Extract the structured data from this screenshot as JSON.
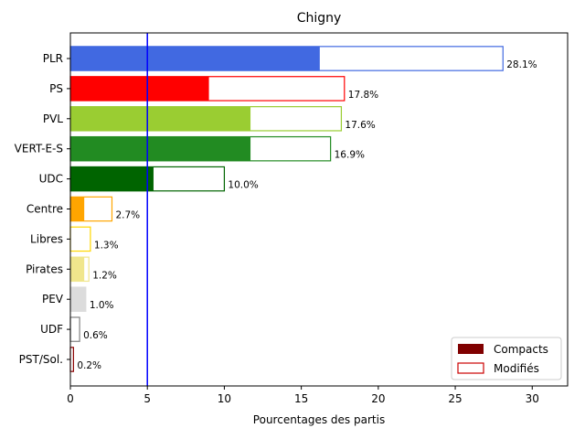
{
  "chart_data": {
    "type": "bar",
    "orientation": "horizontal",
    "title": "Chigny",
    "xlabel": "Pourcentages des partis",
    "ylabel": "",
    "xlim": [
      0,
      32.3
    ],
    "x_ticks": [
      0,
      5,
      10,
      15,
      20,
      25,
      30
    ],
    "threshold_line": {
      "x": 5,
      "color": "#0000ff"
    },
    "legend": {
      "position": "lower-right",
      "entries": [
        {
          "label": "Compacts",
          "style": "filled",
          "color": "#800000"
        },
        {
          "label": "Modifiés",
          "style": "outline",
          "color": "#cc0000"
        }
      ]
    },
    "categories": [
      "PLR",
      "PS",
      "PVL",
      "VERT-E-S",
      "UDC",
      "Centre",
      "Libres",
      "Pirates",
      "PEV",
      "UDF",
      "PST/Sol."
    ],
    "series": [
      {
        "name": "Compacts",
        "values": [
          16.2,
          9.0,
          11.7,
          11.7,
          5.4,
          0.9,
          0.0,
          0.9,
          1.0,
          0.0,
          0.0
        ]
      },
      {
        "name": "Modifiés",
        "values": [
          28.1,
          17.8,
          17.6,
          16.9,
          10.0,
          2.7,
          1.3,
          1.2,
          1.0,
          0.6,
          0.2
        ]
      }
    ],
    "data_labels": [
      "28.1%",
      "17.8%",
      "17.6%",
      "16.9%",
      "10.0%",
      "2.7%",
      "1.3%",
      "1.2%",
      "1.0%",
      "0.6%",
      "0.2%"
    ],
    "colors": [
      "#4169e1",
      "#ff0000",
      "#9acd32",
      "#228b22",
      "#006400",
      "#ffa500",
      "#ffd700",
      "#f0e68c",
      "#dcdcdc",
      "#808080",
      "#8b0000"
    ]
  }
}
